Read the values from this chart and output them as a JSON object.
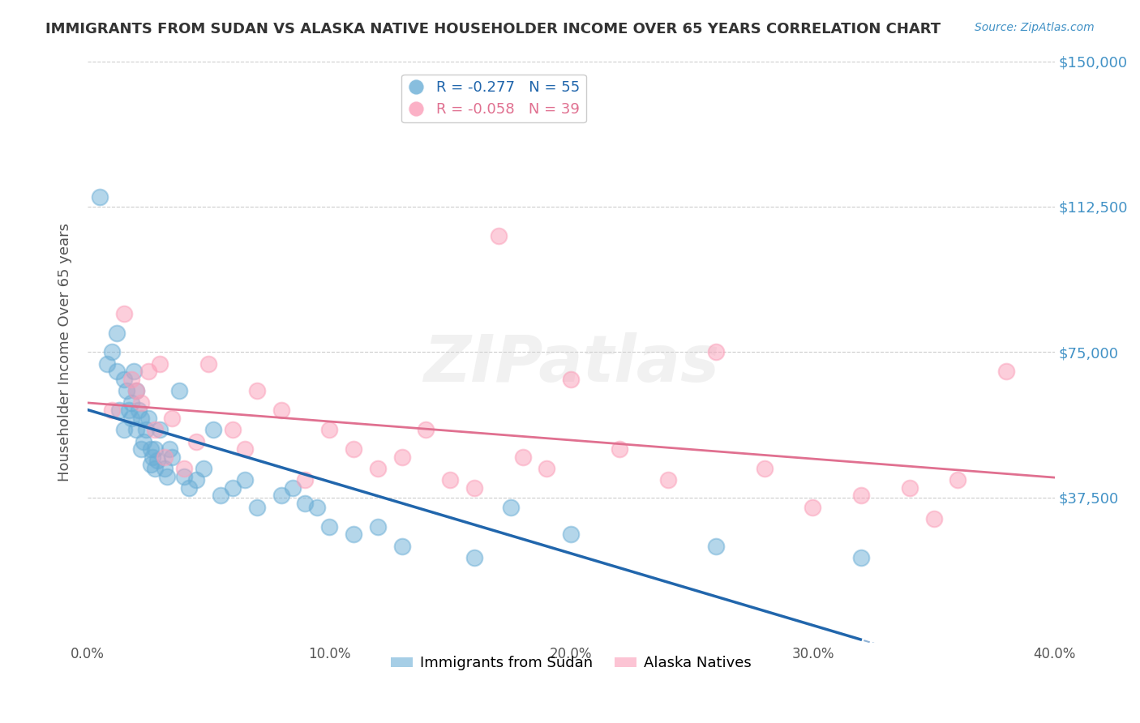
{
  "title": "IMMIGRANTS FROM SUDAN VS ALASKA NATIVE HOUSEHOLDER INCOME OVER 65 YEARS CORRELATION CHART",
  "source": "Source: ZipAtlas.com",
  "ylabel": "Householder Income Over 65 years",
  "xlim": [
    0.0,
    0.4
  ],
  "ylim": [
    0,
    150000
  ],
  "yticks": [
    0,
    37500,
    75000,
    112500,
    150000
  ],
  "ytick_labels": [
    "",
    "$37,500",
    "$75,000",
    "$112,500",
    "$150,000"
  ],
  "xtick_labels": [
    "0.0%",
    "10.0%",
    "20.0%",
    "30.0%",
    "40.0%"
  ],
  "xticks": [
    0.0,
    0.1,
    0.2,
    0.3,
    0.4
  ],
  "r_blue": -0.277,
  "n_blue": 55,
  "r_pink": -0.058,
  "n_pink": 39,
  "watermark": "ZIPatlas",
  "blue_scatter_x": [
    0.005,
    0.008,
    0.01,
    0.012,
    0.012,
    0.013,
    0.015,
    0.015,
    0.016,
    0.017,
    0.018,
    0.018,
    0.019,
    0.02,
    0.02,
    0.021,
    0.022,
    0.022,
    0.023,
    0.024,
    0.025,
    0.026,
    0.026,
    0.027,
    0.028,
    0.028,
    0.029,
    0.03,
    0.032,
    0.033,
    0.034,
    0.035,
    0.038,
    0.04,
    0.042,
    0.045,
    0.048,
    0.052,
    0.055,
    0.06,
    0.065,
    0.07,
    0.08,
    0.085,
    0.09,
    0.095,
    0.1,
    0.11,
    0.12,
    0.13,
    0.16,
    0.175,
    0.2,
    0.26,
    0.32
  ],
  "blue_scatter_y": [
    115000,
    72000,
    75000,
    80000,
    70000,
    60000,
    55000,
    68000,
    65000,
    60000,
    58000,
    62000,
    70000,
    65000,
    55000,
    60000,
    58000,
    50000,
    52000,
    55000,
    58000,
    50000,
    46000,
    48000,
    45000,
    50000,
    47000,
    55000,
    45000,
    43000,
    50000,
    48000,
    65000,
    43000,
    40000,
    42000,
    45000,
    55000,
    38000,
    40000,
    42000,
    35000,
    38000,
    40000,
    36000,
    35000,
    30000,
    28000,
    30000,
    25000,
    22000,
    35000,
    28000,
    25000,
    22000
  ],
  "pink_scatter_x": [
    0.01,
    0.015,
    0.018,
    0.02,
    0.022,
    0.025,
    0.028,
    0.03,
    0.032,
    0.035,
    0.04,
    0.045,
    0.05,
    0.06,
    0.065,
    0.07,
    0.08,
    0.09,
    0.1,
    0.11,
    0.12,
    0.13,
    0.14,
    0.15,
    0.16,
    0.17,
    0.18,
    0.19,
    0.2,
    0.22,
    0.24,
    0.26,
    0.28,
    0.3,
    0.32,
    0.34,
    0.35,
    0.36,
    0.38
  ],
  "pink_scatter_y": [
    60000,
    85000,
    68000,
    65000,
    62000,
    70000,
    55000,
    72000,
    48000,
    58000,
    45000,
    52000,
    72000,
    55000,
    50000,
    65000,
    60000,
    42000,
    55000,
    50000,
    45000,
    48000,
    55000,
    42000,
    40000,
    105000,
    48000,
    45000,
    68000,
    50000,
    42000,
    75000,
    45000,
    35000,
    38000,
    40000,
    32000,
    42000,
    70000
  ],
  "blue_color": "#6baed6",
  "pink_color": "#fb9eb8",
  "blue_line_color": "#2166ac",
  "pink_line_color": "#e07090",
  "background_color": "#ffffff",
  "grid_color": "#cccccc",
  "title_color": "#333333",
  "axis_label_color": "#555555",
  "right_tick_color": "#4292c6"
}
